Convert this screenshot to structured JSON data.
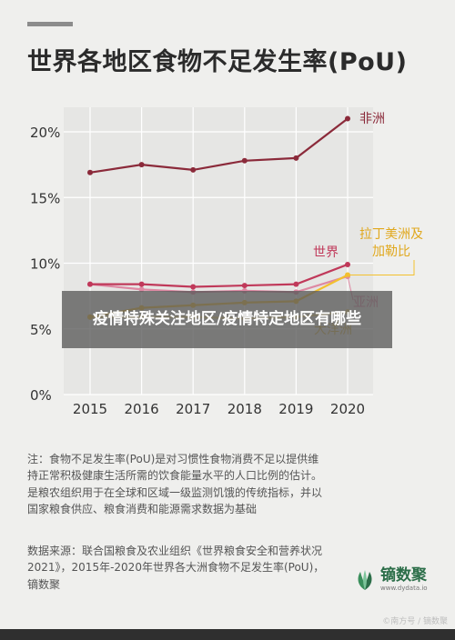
{
  "title": "世界各地区食物不足发生率(PoU)",
  "overlay_text": "疫情特殊关注地区/疫情特定地区有哪些",
  "note": "注：食物不足发生率(PoU)是对习惯性食物消费不足以提供维持正常积极健康生活所需的饮食能量水平的人口比例的估计。是粮农组织用于在全球和区域一级监测饥饿的传统指标，并以国家粮食供应、粮食消费和能源需求数据为基础",
  "source": "数据来源：联合国粮食及农业组织《世界粮食安全和营养状况2021》，2015年-2020年世界各大洲食物不足发生率(PoU)，镝数聚",
  "logo": {
    "name": "镝数聚",
    "url": "www.dydata.io"
  },
  "watermark": "©南方号 / 镝数聚",
  "chart_data": {
    "type": "line",
    "title": "世界各地区食物不足发生率(PoU)",
    "xlabel": "",
    "ylabel": "",
    "x": [
      "2015",
      "2016",
      "2017",
      "2018",
      "2019",
      "2020"
    ],
    "yticks": [
      "0%",
      "5%",
      "10%",
      "15%",
      "20%"
    ],
    "ylim": [
      0,
      20
    ],
    "grid": true,
    "series": [
      {
        "name": "非洲",
        "color": "#8b2a3a",
        "values": [
          16.9,
          17.5,
          17.1,
          17.8,
          18.0,
          21.0
        ]
      },
      {
        "name": "世界",
        "color": "#c0395a",
        "values": [
          8.4,
          8.4,
          8.2,
          8.3,
          8.4,
          9.9
        ]
      },
      {
        "name": "亚洲",
        "color": "#de89a3",
        "values": [
          8.4,
          8.0,
          7.8,
          7.9,
          7.8,
          9.0
        ]
      },
      {
        "name": "拉丁美洲及加勒比",
        "color": "#f3c02e",
        "values": [
          5.9,
          6.6,
          6.8,
          7.0,
          7.1,
          9.1
        ]
      },
      {
        "name": "大洋洲",
        "color": "#f5d980",
        "values": [
          5.9,
          5.9,
          5.9,
          5.8,
          5.9,
          6.3
        ]
      }
    ],
    "labels": [
      {
        "series": "非洲",
        "lines": [
          "非洲"
        ]
      },
      {
        "series": "世界",
        "lines": [
          "世界"
        ]
      },
      {
        "series": "拉丁美洲及加勒比",
        "lines": [
          "拉丁美洲及",
          "加勒比"
        ]
      },
      {
        "series": "亚洲",
        "lines": [
          "亚洲"
        ]
      },
      {
        "series": "大洋洲",
        "lines": [
          "大洋洲"
        ]
      }
    ]
  }
}
